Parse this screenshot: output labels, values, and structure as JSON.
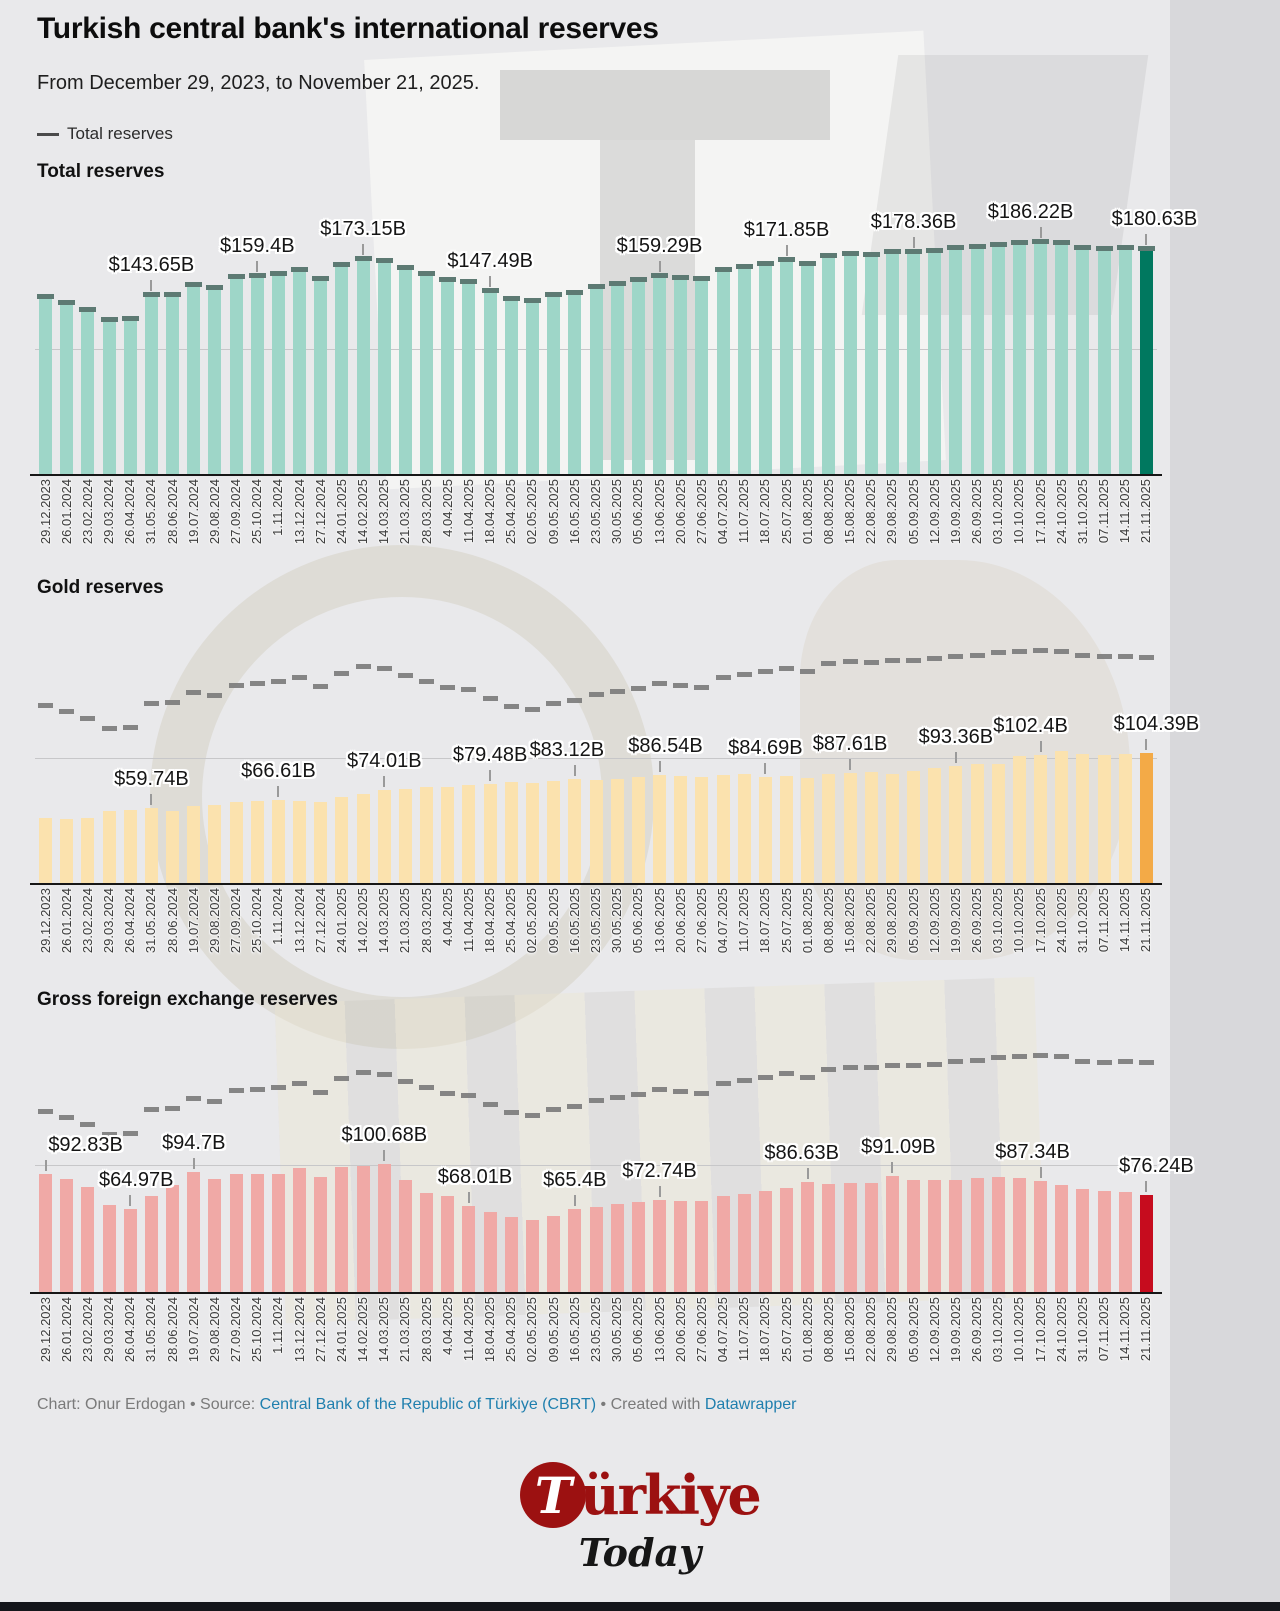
{
  "header": {
    "title": "Turkish central bank's international reserves",
    "subtitle": "From December 29, 2023, to November 21, 2025.",
    "legend_label": "Total reserves"
  },
  "colors": {
    "teal": "#9ed6c8",
    "teal_highlight": "#00785f",
    "total_marker": "#5d7a73",
    "gold": "#fbe2ae",
    "gold_highlight": "#f3aa47",
    "red": "#f0a9a6",
    "red_highlight": "#c60c1e",
    "overlay_dash": "#7c7c7c",
    "link": "#1f7fae",
    "brand_red": "#9c1111"
  },
  "chart_data": [
    {
      "type": "bar",
      "title": "Total reserves",
      "unit": "USD billions",
      "ylim": [
        0,
        205
      ],
      "gridline_value": 100,
      "bar_color": "#9ed6c8",
      "highlight_color": "#00785f",
      "marker_color": "#5d7a73",
      "categories": [
        "29.12.2023",
        "26.01.2024",
        "23.02.2024",
        "29.03.2024",
        "26.04.2024",
        "31.05.2024",
        "28.06.2024",
        "19.07.2024",
        "29.08.2024",
        "27.09.2024",
        "25.10.2024",
        "1.11.2024",
        "13.12.2024",
        "27.12.2024",
        "24.01.2025",
        "14.02.2025",
        "14.03.2025",
        "21.03.2025",
        "28.03.2025",
        "4.04.2025",
        "11.04.2025",
        "18.04.2025",
        "25.04.2025",
        "02.05.2025",
        "09.05.2025",
        "16.05.2025",
        "23.05.2025",
        "30.05.2025",
        "05.06.2025",
        "13.06.2025",
        "20.06.2025",
        "27.06.2025",
        "04.07.2025",
        "11.07.2025",
        "18.07.2025",
        "25.07.2025",
        "01.08.2025",
        "08.08.2025",
        "15.08.2025",
        "22.08.2025",
        "29.08.2025",
        "05.09.2025",
        "12.09.2025",
        "19.09.2025",
        "26.09.2025",
        "03.10.2025",
        "10.10.2025",
        "17.10.2025",
        "24.10.2025",
        "31.10.2025",
        "07.11.2025",
        "14.11.2025",
        "21.11.2025"
      ],
      "values": [
        142.3,
        137.5,
        132,
        123.8,
        124.5,
        143.65,
        144.2,
        152.4,
        149.7,
        158.3,
        159.4,
        161.2,
        164.4,
        156.9,
        167.8,
        173.15,
        171.6,
        165.9,
        161,
        156.4,
        154.5,
        147.49,
        141.2,
        139.1,
        143.9,
        145.7,
        150.5,
        153,
        155.9,
        159.29,
        158,
        156.5,
        164.4,
        166.5,
        169.2,
        171.85,
        168.9,
        175.5,
        177.1,
        176.4,
        178.2,
        178.36,
        179.3,
        181.4,
        182.2,
        184.4,
        185.3,
        186.22,
        185.5,
        181.8,
        181,
        181.5,
        180.63
      ],
      "labels": [
        {
          "index": 5,
          "text": "$143.65B"
        },
        {
          "index": 10,
          "text": "$159.4B"
        },
        {
          "index": 15,
          "text": "$173.15B"
        },
        {
          "index": 21,
          "text": "$147.49B"
        },
        {
          "index": 29,
          "text": "$159.29B"
        },
        {
          "index": 35,
          "text": "$171.85B"
        },
        {
          "index": 41,
          "text": "$178.36B"
        },
        {
          "index": 47,
          "text": "$186.22B",
          "dx": -10
        },
        {
          "index": 52,
          "text": "$180.63B",
          "dx": 8
        }
      ]
    },
    {
      "type": "bar",
      "title": "Gold reserves",
      "unit": "USD billions",
      "ylim": [
        0,
        128
      ],
      "gridline_value": 100,
      "bar_color": "#fbe2ae",
      "highlight_color": "#f3aa47",
      "overlay": {
        "name": "Total reserves",
        "style": "dashed",
        "source": "chart_data.0.values",
        "color": "#7c7c7c"
      },
      "categories": [
        "29.12.2023",
        "26.01.2024",
        "23.02.2024",
        "29.03.2024",
        "26.04.2024",
        "31.05.2024",
        "28.06.2024",
        "19.07.2024",
        "29.08.2024",
        "27.09.2024",
        "25.10.2024",
        "1.11.2024",
        "13.12.2024",
        "27.12.2024",
        "24.01.2025",
        "14.02.2025",
        "14.03.2025",
        "21.03.2025",
        "28.03.2025",
        "4.04.2025",
        "11.04.2025",
        "18.04.2025",
        "25.04.2025",
        "02.05.2025",
        "09.05.2025",
        "16.05.2025",
        "23.05.2025",
        "30.05.2025",
        "05.06.2025",
        "13.06.2025",
        "20.06.2025",
        "27.06.2025",
        "04.07.2025",
        "11.07.2025",
        "18.07.2025",
        "25.07.2025",
        "01.08.2025",
        "08.08.2025",
        "15.08.2025",
        "22.08.2025",
        "29.08.2025",
        "05.09.2025",
        "12.09.2025",
        "19.09.2025",
        "26.09.2025",
        "03.10.2025",
        "10.10.2025",
        "17.10.2025",
        "24.10.2025",
        "31.10.2025",
        "07.11.2025",
        "14.11.2025",
        "21.11.2025"
      ],
      "values": [
        52,
        51.5,
        52.3,
        57.5,
        58.5,
        59.74,
        57.8,
        61.5,
        62.8,
        64.8,
        65.9,
        66.61,
        65.8,
        65.2,
        68.5,
        71.5,
        74.01,
        75.2,
        76.8,
        76.9,
        78.4,
        79.48,
        80.5,
        80,
        81.5,
        83.12,
        82.5,
        83.5,
        84.5,
        86.54,
        85.8,
        84.9,
        86.5,
        87.5,
        84.69,
        86,
        84.2,
        87,
        87.61,
        88.5,
        87.2,
        89.5,
        91.7,
        93.36,
        94.9,
        95.6,
        101.3,
        102.4,
        105.5,
        103.5,
        102.6,
        103,
        104.39
      ],
      "labels": [
        {
          "index": 5,
          "text": "$59.74B"
        },
        {
          "index": 11,
          "text": "$66.61B"
        },
        {
          "index": 16,
          "text": "$74.01B"
        },
        {
          "index": 21,
          "text": "$79.48B"
        },
        {
          "index": 25,
          "text": "$83.12B",
          "dx": -8
        },
        {
          "index": 29,
          "text": "$86.54B",
          "dx": 6
        },
        {
          "index": 34,
          "text": "$84.69B"
        },
        {
          "index": 38,
          "text": "$87.61B"
        },
        {
          "index": 43,
          "text": "$93.36B"
        },
        {
          "index": 47,
          "text": "$102.4B",
          "dx": -10
        },
        {
          "index": 52,
          "text": "$104.39B",
          "dx": 10
        }
      ]
    },
    {
      "type": "bar",
      "title": "Gross foreign exchange reserves",
      "unit": "USD billions",
      "ylim": [
        0,
        122
      ],
      "gridline_value": 100,
      "bar_color": "#f0a9a6",
      "highlight_color": "#c60c1e",
      "overlay": {
        "name": "Total reserves",
        "style": "dashed",
        "source": "chart_data.0.values",
        "color": "#7c7c7c"
      },
      "categories": [
        "29.12.2023",
        "26.01.2024",
        "23.02.2024",
        "29.03.2024",
        "26.04.2024",
        "31.05.2024",
        "28.06.2024",
        "19.07.2024",
        "29.08.2024",
        "27.09.2024",
        "25.10.2024",
        "1.11.2024",
        "13.12.2024",
        "27.12.2024",
        "24.01.2025",
        "14.02.2025",
        "14.03.2025",
        "21.03.2025",
        "28.03.2025",
        "4.04.2025",
        "11.04.2025",
        "18.04.2025",
        "25.04.2025",
        "02.05.2025",
        "09.05.2025",
        "16.05.2025",
        "23.05.2025",
        "30.05.2025",
        "05.06.2025",
        "13.06.2025",
        "20.06.2025",
        "27.06.2025",
        "04.07.2025",
        "11.07.2025",
        "18.07.2025",
        "25.07.2025",
        "01.08.2025",
        "08.08.2025",
        "15.08.2025",
        "22.08.2025",
        "29.08.2025",
        "05.09.2025",
        "12.09.2025",
        "19.09.2025",
        "26.09.2025",
        "03.10.2025",
        "10.10.2025",
        "17.10.2025",
        "24.10.2025",
        "31.10.2025",
        "07.11.2025",
        "14.11.2025",
        "21.11.2025"
      ],
      "values": [
        92.83,
        89,
        82.5,
        68.7,
        64.97,
        75.2,
        84.3,
        94.7,
        88.8,
        92.9,
        92.9,
        92.9,
        97.4,
        90.6,
        98.7,
        99.4,
        100.68,
        88.3,
        78.3,
        75.2,
        68.01,
        63,
        59,
        56.9,
        60.1,
        65.4,
        67.1,
        69.5,
        71,
        72.74,
        72,
        71.5,
        75.5,
        77,
        79.5,
        82,
        86.63,
        85,
        86,
        85.5,
        91.09,
        88.5,
        88,
        88.5,
        89.5,
        90.5,
        89.5,
        87.34,
        84.5,
        81,
        79.5,
        78.5,
        76.24
      ],
      "labels": [
        {
          "index": 0,
          "text": "$92.83B",
          "dx": 40
        },
        {
          "index": 4,
          "text": "$64.97B",
          "dx": 6
        },
        {
          "index": 7,
          "text": "$94.7B"
        },
        {
          "index": 16,
          "text": "$100.68B"
        },
        {
          "index": 20,
          "text": "$68.01B",
          "dx": 6
        },
        {
          "index": 25,
          "text": "$65.4B"
        },
        {
          "index": 29,
          "text": "$72.74B"
        },
        {
          "index": 36,
          "text": "$86.63B",
          "dx": -6
        },
        {
          "index": 40,
          "text": "$91.09B",
          "dx": 6
        },
        {
          "index": 47,
          "text": "$87.34B",
          "dx": -8
        },
        {
          "index": 52,
          "text": "$76.24B",
          "dx": 10
        }
      ]
    }
  ],
  "footer": {
    "credit": "Chart: Onur Erdogan",
    "separator": "•",
    "source_label": "Source:",
    "source_link": "Central Bank of the Republic of Türkiye (CBRT)",
    "created_label": "Created with",
    "created_link": "Datawrapper"
  },
  "logo": {
    "initial": "T",
    "word": "ürkiye",
    "subtitle": "Today"
  }
}
